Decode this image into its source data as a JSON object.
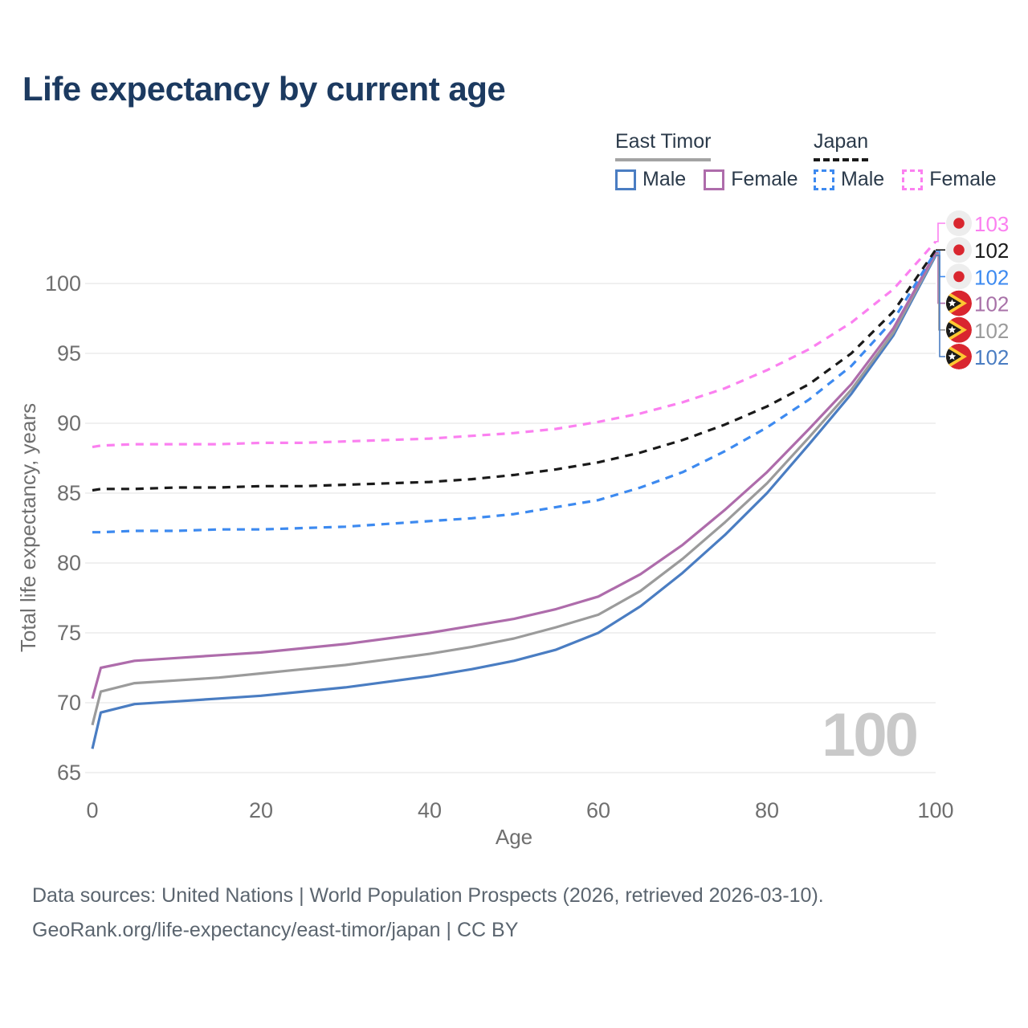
{
  "title": "Life expectancy by current age",
  "legend": {
    "groups": [
      {
        "name": "East Timor",
        "underline_style": "solid",
        "underline_color": "#a3a3a3",
        "items": [
          {
            "label": "Male",
            "color": "#4a7dc2",
            "line_style": "solid"
          },
          {
            "label": "Female",
            "color": "#ae6cab",
            "line_style": "solid"
          }
        ]
      },
      {
        "name": "Japan",
        "underline_style": "dashed",
        "underline_color": "#1a1a1a",
        "items": [
          {
            "label": "Male",
            "color": "#3d8af0",
            "line_style": "dashed"
          },
          {
            "label": "Female",
            "color": "#fb80f0",
            "line_style": "dashed"
          }
        ]
      }
    ]
  },
  "footer": {
    "line1": "Data sources: United Nations | World Population Prospects (2026, retrieved 2026-03-10).",
    "line2": "GeoRank.org/life-expectancy/east-timor/japan | CC BY"
  },
  "chart_data": {
    "type": "line",
    "title": "Life expectancy by current age",
    "xlabel": "Age",
    "ylabel": "Total life expectancy, years",
    "xlim": [
      0,
      100
    ],
    "ylim": [
      65,
      103.5
    ],
    "x_ticks": [
      0,
      20,
      40,
      60,
      80,
      100
    ],
    "y_ticks": [
      65,
      70,
      75,
      80,
      85,
      90,
      95,
      100
    ],
    "grid": "horizontal",
    "legend_position": "top-right",
    "hover_age_label": "100",
    "x": [
      0,
      1,
      5,
      10,
      15,
      20,
      25,
      30,
      35,
      40,
      45,
      50,
      55,
      60,
      65,
      70,
      75,
      80,
      85,
      90,
      95,
      100
    ],
    "series": [
      {
        "name": "Japan Female",
        "country": "Japan",
        "sex": "Female",
        "style": "dashed",
        "color": "#fb80f0",
        "flag": "japan",
        "end_label": "103",
        "label_color": "#fb80f0",
        "values": [
          88.3,
          88.4,
          88.5,
          88.5,
          88.5,
          88.6,
          88.6,
          88.7,
          88.8,
          88.9,
          89.1,
          89.3,
          89.6,
          90.1,
          90.7,
          91.5,
          92.5,
          93.8,
          95.3,
          97.2,
          99.6,
          103.0
        ]
      },
      {
        "name": "Japan",
        "country": "Japan",
        "sex": "All",
        "style": "dashed",
        "color": "#1a1a1a",
        "flag": "japan",
        "end_label": "102",
        "label_color": "#1a1a1a",
        "values": [
          85.2,
          85.3,
          85.3,
          85.4,
          85.4,
          85.5,
          85.5,
          85.6,
          85.7,
          85.8,
          86.0,
          86.3,
          86.7,
          87.2,
          87.9,
          88.8,
          89.9,
          91.2,
          92.8,
          95.0,
          98.0,
          102.4
        ]
      },
      {
        "name": "Japan Male",
        "country": "Japan",
        "sex": "Male",
        "style": "dashed",
        "color": "#3d8af0",
        "flag": "japan",
        "end_label": "102",
        "label_color": "#3d8af0",
        "values": [
          82.2,
          82.2,
          82.3,
          82.3,
          82.4,
          82.4,
          82.5,
          82.6,
          82.8,
          83.0,
          83.2,
          83.5,
          84.0,
          84.5,
          85.4,
          86.5,
          88.0,
          89.7,
          91.7,
          94.1,
          97.4,
          102.3
        ]
      },
      {
        "name": "East Timor Female",
        "country": "East Timor",
        "sex": "Female",
        "style": "solid",
        "color": "#ae6cab",
        "flag": "east-timor",
        "end_label": "102",
        "label_color": "#a872a8",
        "values": [
          70.3,
          72.5,
          73.0,
          73.2,
          73.4,
          73.6,
          73.9,
          74.2,
          74.6,
          75.0,
          75.5,
          76.0,
          76.7,
          77.6,
          79.2,
          81.3,
          83.8,
          86.5,
          89.6,
          92.8,
          96.8,
          102.2
        ]
      },
      {
        "name": "East Timor",
        "country": "East Timor",
        "sex": "All",
        "style": "solid",
        "color": "#9b9b9b",
        "flag": "east-timor",
        "end_label": "102",
        "label_color": "#9b9b9b",
        "values": [
          68.4,
          70.8,
          71.4,
          71.6,
          71.8,
          72.1,
          72.4,
          72.7,
          73.1,
          73.5,
          74.0,
          74.6,
          75.4,
          76.3,
          78.0,
          80.3,
          82.9,
          85.7,
          89.0,
          92.4,
          96.5,
          102.1
        ]
      },
      {
        "name": "East Timor Male",
        "country": "East Timor",
        "sex": "Male",
        "style": "solid",
        "color": "#4a7dc2",
        "flag": "east-timor",
        "end_label": "102",
        "label_color": "#4a7dc2",
        "values": [
          66.7,
          69.3,
          69.9,
          70.1,
          70.3,
          70.5,
          70.8,
          71.1,
          71.5,
          71.9,
          72.4,
          73.0,
          73.8,
          75.0,
          76.9,
          79.3,
          82.0,
          85.0,
          88.5,
          92.1,
          96.3,
          102.0
        ]
      }
    ]
  }
}
